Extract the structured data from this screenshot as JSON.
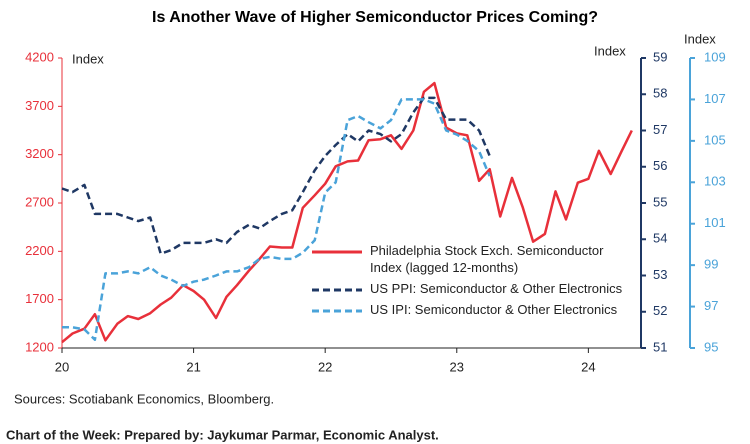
{
  "chart_data": {
    "type": "line",
    "title": "Is Another Wave of Higher Semiconductor Prices Coming?",
    "y_label": "Index",
    "y2_label": "Index",
    "y3_label": "Index",
    "source": "Sources: Scotiabank Economics, Bloomberg.",
    "footer": "Chart of the Week: Prepared by: Jaykumar Parmar, Economic Analyst.",
    "xlim": [
      20,
      24.4
    ],
    "xticks": [
      20,
      21,
      22,
      23,
      24
    ],
    "ylim": [
      1200,
      4200
    ],
    "yticks": [
      1200,
      1700,
      2200,
      2700,
      3200,
      3700,
      4200
    ],
    "y2lim": [
      51,
      59
    ],
    "y2ticks": [
      51,
      52,
      53,
      54,
      55,
      56,
      57,
      58,
      59
    ],
    "y3lim": [
      95,
      109
    ],
    "y3ticks": [
      95,
      97,
      99,
      101,
      103,
      105,
      107,
      109
    ],
    "series": [
      {
        "name": "Philadelphia Stock Exch. Semiconductor Index (lagged 12-months)",
        "color": "#e8303a",
        "axis": "y",
        "x": [
          20,
          20.08,
          20.17,
          20.25,
          20.33,
          20.42,
          20.5,
          20.58,
          20.67,
          20.75,
          20.83,
          20.92,
          21,
          21.08,
          21.17,
          21.25,
          21.33,
          21.42,
          21.5,
          21.58,
          21.67,
          21.75,
          21.83,
          21.92,
          22,
          22.08,
          22.17,
          22.25,
          22.33,
          22.42,
          22.5,
          22.58,
          22.67,
          22.75,
          22.83,
          22.92,
          23,
          23.08,
          23.17,
          23.25,
          23.33,
          23.42,
          23.5,
          23.58,
          23.67,
          23.75,
          23.83,
          23.92,
          24,
          24.08,
          24.17,
          24.25,
          24.33
        ],
        "values": [
          1260,
          1350,
          1400,
          1550,
          1280,
          1450,
          1530,
          1500,
          1560,
          1650,
          1720,
          1850,
          1790,
          1700,
          1510,
          1730,
          1850,
          2000,
          2120,
          2250,
          2240,
          2240,
          2650,
          2780,
          2900,
          3080,
          3130,
          3140,
          3350,
          3360,
          3400,
          3260,
          3450,
          3850,
          3940,
          3480,
          3420,
          3400,
          2930,
          3050,
          2560,
          2960,
          2660,
          2300,
          2380,
          2820,
          2530,
          2910,
          2950,
          3240,
          3000,
          3230,
          3450
        ]
      },
      {
        "name": "US PPI: Semiconductor & Other Electronics",
        "color": "#1f3864",
        "axis": "y2",
        "x": [
          20,
          20.08,
          20.17,
          20.25,
          20.33,
          20.42,
          20.5,
          20.58,
          20.67,
          20.75,
          20.83,
          20.92,
          21,
          21.08,
          21.17,
          21.25,
          21.33,
          21.42,
          21.5,
          21.58,
          21.67,
          21.75,
          21.83,
          21.92,
          22,
          22.08,
          22.17,
          22.25,
          22.33,
          22.42,
          22.5,
          22.58,
          22.67,
          22.75,
          22.83,
          22.92,
          23,
          23.08,
          23.17,
          23.25
        ],
        "values": [
          55.4,
          55.3,
          55.5,
          54.7,
          54.7,
          54.7,
          54.6,
          54.5,
          54.6,
          53.6,
          53.7,
          53.9,
          53.9,
          53.9,
          54.0,
          53.9,
          54.2,
          54.4,
          54.3,
          54.5,
          54.7,
          54.8,
          55.3,
          55.9,
          56.3,
          56.6,
          56.9,
          56.7,
          57.0,
          56.9,
          56.7,
          56.9,
          57.5,
          57.9,
          57.9,
          57.3,
          57.3,
          57.3,
          57.0,
          56.3
        ]
      },
      {
        "name": "US IPI: Semiconductor & Other Electronics",
        "color": "#4aa3d9",
        "axis": "y3",
        "x": [
          20,
          20.08,
          20.17,
          20.25,
          20.33,
          20.42,
          20.5,
          20.58,
          20.67,
          20.75,
          20.83,
          20.92,
          21,
          21.08,
          21.17,
          21.25,
          21.33,
          21.42,
          21.5,
          21.58,
          21.67,
          21.75,
          21.83,
          21.92,
          22,
          22.08,
          22.17,
          22.25,
          22.33,
          22.42,
          22.5,
          22.58,
          22.67,
          22.75,
          22.83,
          22.92,
          23,
          23.08,
          23.17,
          23.25
        ],
        "values": [
          96.0,
          96.0,
          95.9,
          95.4,
          98.6,
          98.6,
          98.7,
          98.6,
          98.9,
          98.5,
          98.3,
          98.0,
          98.2,
          98.3,
          98.5,
          98.7,
          98.7,
          98.9,
          99.3,
          99.4,
          99.3,
          99.3,
          99.6,
          100.2,
          102.5,
          103.0,
          106.0,
          106.2,
          105.9,
          105.6,
          106.0,
          107.0,
          107.0,
          107.0,
          106.8,
          105.5,
          105.3,
          105.0,
          104.5,
          103.3
        ]
      }
    ]
  }
}
